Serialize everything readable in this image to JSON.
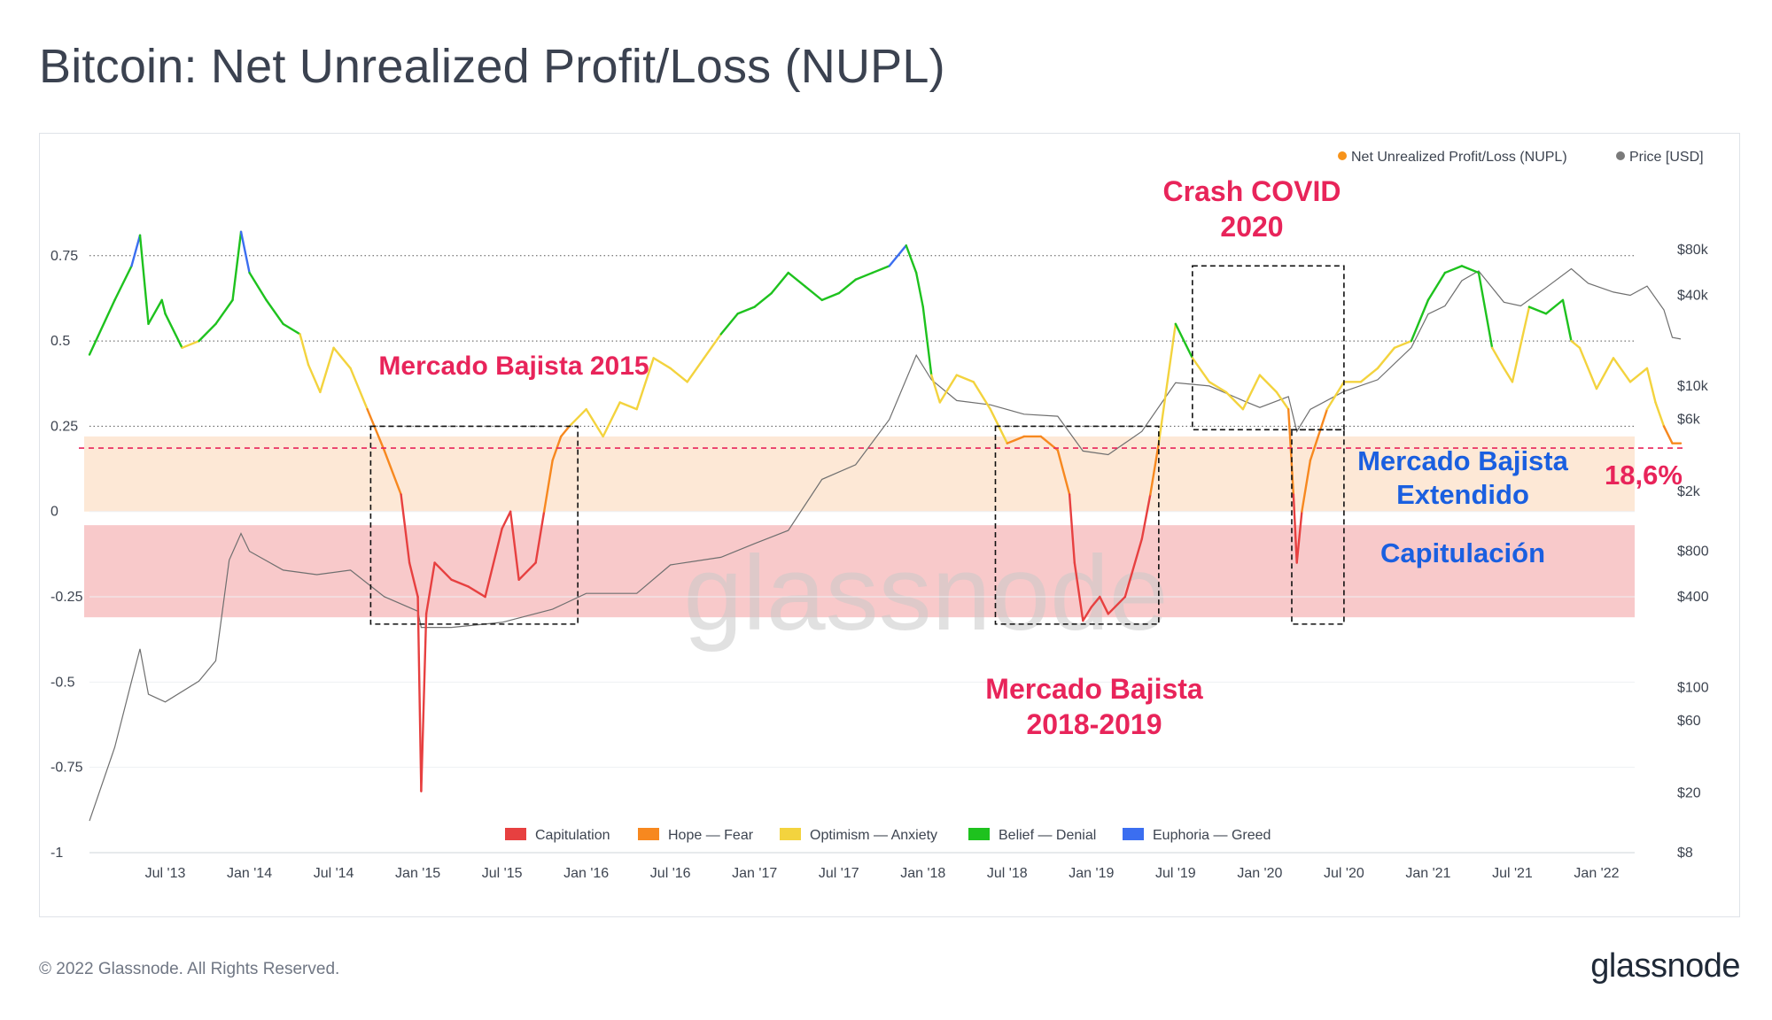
{
  "title": "Bitcoin: Net Unrealized Profit/Loss (NUPL)",
  "footer": {
    "copyright": "© 2022 Glassnode. All Rights Reserved.",
    "logo": "glassnode"
  },
  "chart_data": {
    "type": "line",
    "watermark": "glassnode",
    "legend_top": [
      {
        "name": "Net Unrealized Profit/Loss (NUPL)",
        "color": "#f7931a"
      },
      {
        "name": "Price [USD]",
        "color": "#7a7a7a"
      }
    ],
    "legend_bottom": [
      {
        "name": "Capitulation",
        "color": "#e74040"
      },
      {
        "name": "Hope — Fear",
        "color": "#f7881f"
      },
      {
        "name": "Optimism — Anxiety",
        "color": "#f3d33e"
      },
      {
        "name": "Belief — Denial",
        "color": "#1ec21e"
      },
      {
        "name": "Euphoria — Greed",
        "color": "#3b6ef0"
      }
    ],
    "y_left": {
      "ticks": [
        0.75,
        0.5,
        0.25,
        0,
        -0.25,
        -0.5,
        -0.75,
        -1
      ],
      "labels": [
        "0.75",
        "0.5",
        "0.25",
        "0",
        "-0.25",
        "-0.5",
        "-0.75",
        "-1"
      ],
      "range": [
        -1,
        0.9
      ]
    },
    "y_right": {
      "scale": "log",
      "range": [
        8,
        160000
      ],
      "ticks": [
        80000,
        40000,
        10000,
        6000,
        2000,
        800,
        400,
        100,
        60,
        20,
        8
      ],
      "labels": [
        "$80k",
        "$40k",
        "$10k",
        "$6k",
        "$2k",
        "$800",
        "$400",
        "$100",
        "$60",
        "$20",
        "$8"
      ]
    },
    "x_axis": {
      "range": [
        2013.05,
        2022.5
      ],
      "ticks": [
        2013.5,
        2014.0,
        2014.5,
        2015.0,
        2015.5,
        2016.0,
        2016.5,
        2017.0,
        2017.5,
        2018.0,
        2018.5,
        2019.0,
        2019.5,
        2020.0,
        2020.5,
        2021.0,
        2021.5,
        2022.0
      ],
      "labels": [
        "Jul '13",
        "Jan '14",
        "Jul '14",
        "Jan '15",
        "Jul '15",
        "Jan '16",
        "Jul '16",
        "Jan '17",
        "Jul '17",
        "Jan '18",
        "Jul '18",
        "Jan '19",
        "Jul '19",
        "Jan '20",
        "Jul '20",
        "Jan '21",
        "Jul '21",
        "Jan '22"
      ]
    },
    "zones": [
      {
        "name": "hope-fear-band",
        "from": 0,
        "to": 0.22,
        "color": "#fde8d6"
      },
      {
        "name": "capitulation-band",
        "from": -0.31,
        "to": -0.04,
        "color": "#f8c9ca"
      }
    ],
    "threshold": {
      "value": 0.186,
      "color": "#e8245a"
    },
    "nupl": {
      "x": [
        2013.05,
        2013.2,
        2013.3,
        2013.35,
        2013.4,
        2013.48,
        2013.5,
        2013.6,
        2013.7,
        2013.8,
        2013.9,
        2013.95,
        2014.0,
        2014.1,
        2014.2,
        2014.3,
        2014.35,
        2014.42,
        2014.5,
        2014.6,
        2014.7,
        2014.8,
        2014.9,
        2014.95,
        2015.0,
        2015.02,
        2015.05,
        2015.1,
        2015.2,
        2015.3,
        2015.4,
        2015.5,
        2015.55,
        2015.6,
        2015.7,
        2015.75,
        2015.8,
        2015.85,
        2015.9,
        2016.0,
        2016.1,
        2016.2,
        2016.3,
        2016.4,
        2016.5,
        2016.6,
        2016.7,
        2016.8,
        2016.9,
        2017.0,
        2017.1,
        2017.2,
        2017.3,
        2017.4,
        2017.5,
        2017.6,
        2017.7,
        2017.8,
        2017.9,
        2017.96,
        2018.0,
        2018.05,
        2018.1,
        2018.2,
        2018.3,
        2018.4,
        2018.5,
        2018.6,
        2018.7,
        2018.8,
        2018.87,
        2018.9,
        2018.95,
        2019.0,
        2019.05,
        2019.1,
        2019.2,
        2019.3,
        2019.35,
        2019.4,
        2019.5,
        2019.6,
        2019.7,
        2019.8,
        2019.9,
        2020.0,
        2020.1,
        2020.17,
        2020.2,
        2020.22,
        2020.25,
        2020.3,
        2020.4,
        2020.5,
        2020.6,
        2020.7,
        2020.8,
        2020.9,
        2021.0,
        2021.1,
        2021.2,
        2021.3,
        2021.38,
        2021.45,
        2021.5,
        2021.6,
        2021.7,
        2021.8,
        2021.85,
        2021.9,
        2022.0,
        2022.1,
        2022.2,
        2022.3,
        2022.35,
        2022.4,
        2022.45,
        2022.5
      ],
      "y": [
        0.46,
        0.62,
        0.72,
        0.81,
        0.55,
        0.62,
        0.58,
        0.48,
        0.5,
        0.55,
        0.62,
        0.82,
        0.7,
        0.62,
        0.55,
        0.52,
        0.43,
        0.35,
        0.48,
        0.42,
        0.3,
        0.18,
        0.05,
        -0.15,
        -0.25,
        -0.82,
        -0.3,
        -0.15,
        -0.2,
        -0.22,
        -0.25,
        -0.05,
        0.0,
        -0.2,
        -0.15,
        0.0,
        0.15,
        0.22,
        0.25,
        0.3,
        0.22,
        0.32,
        0.3,
        0.45,
        0.42,
        0.38,
        0.45,
        0.52,
        0.58,
        0.6,
        0.64,
        0.7,
        0.66,
        0.62,
        0.64,
        0.68,
        0.7,
        0.72,
        0.78,
        0.7,
        0.6,
        0.4,
        0.32,
        0.4,
        0.38,
        0.3,
        0.2,
        0.22,
        0.22,
        0.18,
        0.05,
        -0.15,
        -0.32,
        -0.28,
        -0.25,
        -0.3,
        -0.25,
        -0.08,
        0.05,
        0.2,
        0.55,
        0.45,
        0.38,
        0.35,
        0.3,
        0.4,
        0.35,
        0.3,
        0.05,
        -0.15,
        0.0,
        0.15,
        0.3,
        0.38,
        0.38,
        0.42,
        0.48,
        0.5,
        0.62,
        0.7,
        0.72,
        0.7,
        0.48,
        0.42,
        0.38,
        0.6,
        0.58,
        0.62,
        0.5,
        0.48,
        0.36,
        0.45,
        0.38,
        0.42,
        0.32,
        0.25,
        0.2,
        0.2
      ]
    },
    "price": {
      "x": [
        2013.05,
        2013.2,
        2013.3,
        2013.35,
        2013.4,
        2013.5,
        2013.7,
        2013.8,
        2013.88,
        2013.95,
        2014.0,
        2014.2,
        2014.4,
        2014.6,
        2014.8,
        2015.0,
        2015.02,
        2015.2,
        2015.5,
        2015.8,
        2016.0,
        2016.3,
        2016.5,
        2016.8,
        2017.0,
        2017.2,
        2017.4,
        2017.6,
        2017.8,
        2017.96,
        2018.05,
        2018.2,
        2018.4,
        2018.6,
        2018.8,
        2018.95,
        2019.1,
        2019.3,
        2019.5,
        2019.7,
        2019.9,
        2020.0,
        2020.17,
        2020.22,
        2020.3,
        2020.5,
        2020.7,
        2020.9,
        2021.0,
        2021.1,
        2021.2,
        2021.3,
        2021.45,
        2021.55,
        2021.7,
        2021.85,
        2021.95,
        2022.1,
        2022.2,
        2022.3,
        2022.4,
        2022.45,
        2022.5
      ],
      "y": [
        13,
        40,
        110,
        180,
        90,
        80,
        110,
        150,
        700,
        1050,
        800,
        600,
        560,
        600,
        400,
        320,
        250,
        250,
        270,
        330,
        420,
        420,
        650,
        730,
        900,
        1100,
        2400,
        3000,
        6000,
        16000,
        11000,
        8000,
        7500,
        6500,
        6300,
        3700,
        3500,
        5000,
        10500,
        10000,
        8000,
        7200,
        8500,
        5000,
        7000,
        9200,
        11000,
        18000,
        30000,
        34000,
        50000,
        58000,
        36000,
        34000,
        45000,
        60000,
        48000,
        42000,
        40000,
        46000,
        32000,
        21000,
        20500
      ]
    },
    "annotations": [
      {
        "text": "Mercado Bajista 2015",
        "color": "#e8245a"
      },
      {
        "text": "Crash COVID",
        "color": "#e8245a"
      },
      {
        "text": "2020",
        "color": "#e8245a"
      },
      {
        "text": "Mercado Bajista",
        "color": "#e8245a"
      },
      {
        "text": "2018-2019",
        "color": "#e8245a"
      },
      {
        "text": "Mercado Bajista",
        "color": "#1a5fe0"
      },
      {
        "text": "Extendido",
        "color": "#1a5fe0"
      },
      {
        "text": "Capitulación",
        "color": "#1a5fe0"
      },
      {
        "text": "18,6%",
        "color": "#e8245a"
      }
    ],
    "highlight_boxes": [
      {
        "name": "box-2015",
        "x": [
          2014.72,
          2015.95
        ],
        "y": [
          -0.33,
          0.25
        ]
      },
      {
        "name": "box-2018-2019",
        "x": [
          2018.43,
          2019.4
        ],
        "y": [
          -0.33,
          0.25
        ]
      },
      {
        "name": "box-covid-2020",
        "x": [
          2020.19,
          2020.5
        ],
        "y": [
          -0.33,
          0.24
        ]
      },
      {
        "name": "box-covid-top",
        "x": [
          2019.6,
          2020.5
        ],
        "y": [
          0.24,
          0.72
        ]
      }
    ]
  }
}
